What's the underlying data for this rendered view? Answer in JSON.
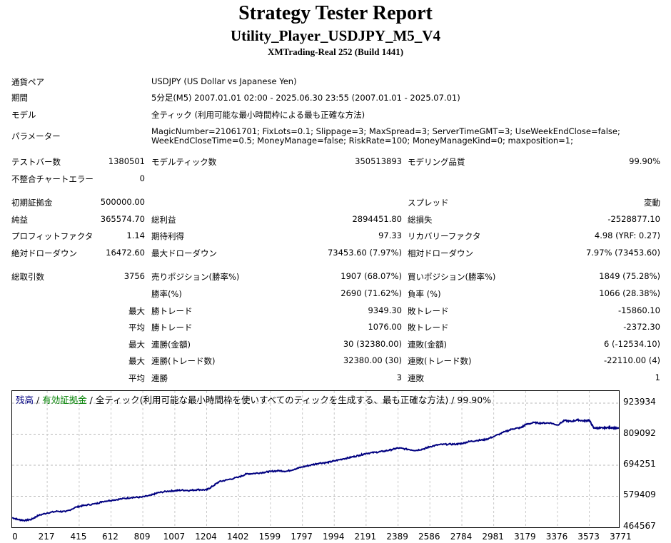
{
  "header": {
    "title": "Strategy Tester Report",
    "ea_name": "Utility_Player_USDJPY_M5_V4",
    "server": "XMTrading-Real 252 (Build 1441)"
  },
  "info": {
    "pair_label": "通貨ペア",
    "pair_value": "USDJPY (US Dollar vs Japanese Yen)",
    "period_label": "期間",
    "period_value": "5分足(M5) 2007.01.01 02:00 - 2025.06.30 23:55 (2007.01.01 - 2025.07.01)",
    "model_label": "モデル",
    "model_value": "全ティック (利用可能な最小時間枠による最も正確な方法)",
    "params_label": "パラメーター",
    "params_line1": "MagicNumber=21061701; FixLots=0.1; Slippage=3; MaxSpread=3; ServerTimeGMT=3; UseWeekEndClose=false;",
    "params_line2": "WeekEndCloseTime=0.5; MoneyManage=false; RiskRate=100; MoneyManageKind=0; maxposition=1;"
  },
  "stats": {
    "bars_label": "テストバー数",
    "bars_value": "1380501",
    "ticks_label": "モデルティック数",
    "ticks_value": "350513893",
    "quality_label": "モデリング品質",
    "quality_value": "99.90%",
    "mismatch_label": "不整合チャートエラー",
    "mismatch_value": "0",
    "deposit_label": "初期証拠金",
    "deposit_value": "500000.00",
    "spread_label": "スプレッド",
    "spread_value": "変動",
    "net_label": "純益",
    "net_value": "365574.70",
    "gross_profit_label": "総利益",
    "gross_profit_value": "2894451.80",
    "gross_loss_label": "総損失",
    "gross_loss_value": "-2528877.10",
    "pf_label": "プロフィットファクタ",
    "pf_value": "1.14",
    "expected_label": "期待利得",
    "expected_value": "97.33",
    "recovery_label": "リカバリーファクタ",
    "recovery_value": "4.98 (YRF: 0.27)",
    "abs_dd_label": "絶対ドローダウン",
    "abs_dd_value": "16472.60",
    "max_dd_label": "最大ドローダウン",
    "max_dd_value": "73453.60 (7.97%)",
    "rel_dd_label": "相対ドローダウン",
    "rel_dd_value": "7.97% (73453.60)",
    "total_trades_label": "総取引数",
    "total_trades_value": "3756",
    "short_label": "売りポジション(勝率%)",
    "short_value": "1907 (68.07%)",
    "long_label": "買いポジション(勝率%)",
    "long_value": "1849 (75.28%)",
    "winrate_label": "勝率(%)",
    "winrate_value": "2690 (71.62%)",
    "lossrate_label": "負率 (%)",
    "lossrate_value": "1066 (28.38%)",
    "max_word": "最大",
    "avg_word": "平均",
    "largest_win_label": "勝トレード",
    "largest_win_value": "9349.30",
    "largest_loss_label": "敗トレード",
    "largest_loss_value": "-15860.10",
    "avg_win_label": "勝トレード",
    "avg_win_value": "1076.00",
    "avg_loss_label": "敗トレード",
    "avg_loss_value": "-2372.30",
    "max_consec_win_label": "連勝(金額)",
    "max_consec_win_value": "30 (32380.00)",
    "max_consec_loss_label": "連敗(金額)",
    "max_consec_loss_value": "6 (-12534.10)",
    "max_consec_win_trades_label": "連勝(トレード数)",
    "max_consec_win_trades_value": "32380.00 (30)",
    "max_consec_loss_trades_label": "連敗(トレード数)",
    "max_consec_loss_trades_value": "-22110.00 (4)",
    "avg_consec_win_label": "連勝",
    "avg_consec_win_value": "3",
    "avg_consec_loss_label": "連敗",
    "avg_consec_loss_value": "1"
  },
  "legend": {
    "balance": "残高",
    "sep1": " / ",
    "equity": "有効証拠金",
    "sep2": " / ",
    "desc": "全ティック(利用可能な最小時間枠を使いすべてのティックを生成する、最も正確な方法) / 99.90%",
    "balance_color": "#000080",
    "equity_color": "#008000"
  },
  "chart_data": {
    "type": "line",
    "title": "",
    "xlabel": "",
    "ylabel": "",
    "xlim": [
      0,
      3756
    ],
    "ylim": [
      464567,
      923934
    ],
    "x_ticks": [
      0,
      217,
      415,
      612,
      809,
      1007,
      1204,
      1402,
      1599,
      1797,
      1994,
      2191,
      2389,
      2586,
      2784,
      2981,
      3179,
      3376,
      3573,
      3771
    ],
    "y_ticks": [
      923934,
      809092,
      694251,
      579409,
      464567
    ],
    "grid": true,
    "series": [
      {
        "line_color": "#000080",
        "x": [
          0,
          40,
          80,
          120,
          160,
          220,
          280,
          330,
          400,
          450,
          520,
          560,
          620,
          680,
          740,
          800,
          860,
          900,
          960,
          1007,
          1050,
          1100,
          1150,
          1204,
          1240,
          1280,
          1330,
          1402,
          1450,
          1500,
          1560,
          1599,
          1650,
          1700,
          1750,
          1797,
          1850,
          1900,
          1950,
          1994,
          2050,
          2100,
          2150,
          2191,
          2250,
          2300,
          2350,
          2389,
          2450,
          2500,
          2550,
          2586,
          2640,
          2700,
          2750,
          2784,
          2830,
          2880,
          2930,
          2981,
          3050,
          3100,
          3150,
          3179,
          3230,
          3280,
          3330,
          3376,
          3420,
          3460,
          3500,
          3540,
          3573,
          3600,
          3630,
          3660,
          3690,
          3720,
          3756
        ],
        "y": [
          500000,
          493000,
          490000,
          494000,
          508000,
          518000,
          524000,
          522000,
          540000,
          546000,
          552000,
          560000,
          565000,
          570000,
          575000,
          576000,
          583000,
          592000,
          598000,
          600000,
          602000,
          601000,
          604000,
          603000,
          616000,
          633000,
          640000,
          650000,
          662000,
          664000,
          668000,
          671000,
          674000,
          672000,
          680000,
          688000,
          695000,
          702000,
          704000,
          710000,
          718000,
          724000,
          731000,
          738000,
          742000,
          746000,
          752000,
          758000,
          753000,
          749000,
          755000,
          763000,
          770000,
          772000,
          772000,
          775000,
          782000,
          786000,
          789000,
          800000,
          818000,
          829000,
          833000,
          845000,
          852000,
          850000,
          851000,
          843000,
          860000,
          856000,
          862000,
          858000,
          861000,
          832000,
          832000,
          832000,
          834000,
          833000,
          830000
        ]
      }
    ]
  }
}
